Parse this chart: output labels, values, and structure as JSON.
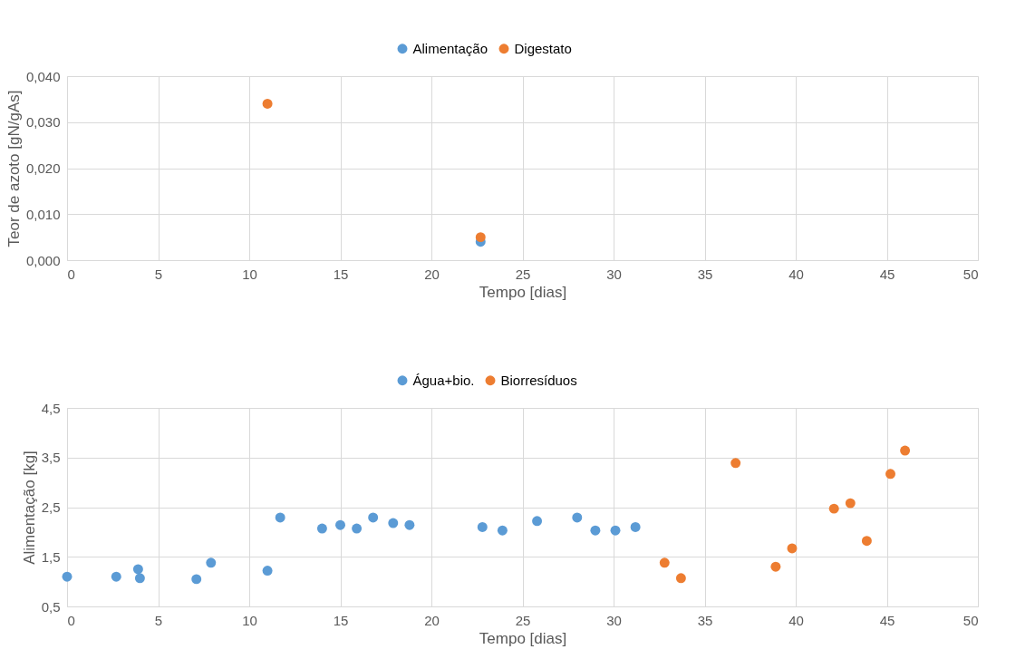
{
  "chart_data": [
    {
      "type": "scatter",
      "xlabel": "Tempo [dias]",
      "ylabel": "Teor de azoto [gN/gAs]",
      "legend": "top",
      "grid": true,
      "marker": "circle",
      "xlim": [
        0,
        50
      ],
      "xticks": [
        0,
        5,
        10,
        15,
        20,
        25,
        30,
        35,
        40,
        45,
        50
      ],
      "ylim": [
        0,
        0.04
      ],
      "yticks": [
        {
          "value": 0,
          "label": "0,000"
        },
        {
          "value": 0.01,
          "label": "0,010"
        },
        {
          "value": 0.02,
          "label": "0,020"
        },
        {
          "value": 0.03,
          "label": "0,030"
        },
        {
          "value": 0.04,
          "label": "0,040"
        }
      ],
      "series": [
        {
          "name": "Alimentação",
          "color": "#5b9bd5",
          "x": [
            22.7
          ],
          "values": [
            0.004
          ]
        },
        {
          "name": "Digestato",
          "color": "#ed7d31",
          "x": [
            11,
            22.7
          ],
          "values": [
            0.034,
            0.005
          ]
        }
      ]
    },
    {
      "type": "scatter",
      "xlabel": "Tempo [dias]",
      "ylabel": "Alimentação [kg]",
      "legend": "top",
      "grid": true,
      "marker": "circle",
      "xlim": [
        0,
        50
      ],
      "xticks": [
        0,
        5,
        10,
        15,
        20,
        25,
        30,
        35,
        40,
        45,
        50
      ],
      "ylim": [
        0.5,
        4.5
      ],
      "yticks": [
        {
          "value": 0.5,
          "label": "0,5"
        },
        {
          "value": 1.5,
          "label": "1,5"
        },
        {
          "value": 2.5,
          "label": "2,5"
        },
        {
          "value": 3.5,
          "label": "3,5"
        },
        {
          "value": 4.5,
          "label": "4,5"
        }
      ],
      "series": [
        {
          "name": "Água+bio.",
          "color": "#5b9bd5",
          "x": [
            0,
            2.7,
            3.9,
            4.0,
            7.1,
            7.9,
            11,
            11.7,
            14,
            15,
            15.9,
            16.8,
            17.9,
            18.8,
            22.8,
            23.9,
            25.8,
            28,
            29,
            30.1,
            31.2
          ],
          "values": [
            1.1,
            1.1,
            1.25,
            1.07,
            1.05,
            1.38,
            1.22,
            2.29,
            2.07,
            2.14,
            2.07,
            2.29,
            2.18,
            2.14,
            2.1,
            2.03,
            2.22,
            2.29,
            2.03,
            2.03,
            2.1
          ]
        },
        {
          "name": "Biorresíduos",
          "color": "#ed7d31",
          "x": [
            32.8,
            33.7,
            36.7,
            38.9,
            39.8,
            42.1,
            43,
            43.9,
            45.2,
            46
          ],
          "values": [
            1.38,
            1.07,
            3.39,
            1.3,
            1.67,
            2.47,
            2.58,
            1.82,
            3.17,
            3.64
          ]
        }
      ]
    }
  ]
}
